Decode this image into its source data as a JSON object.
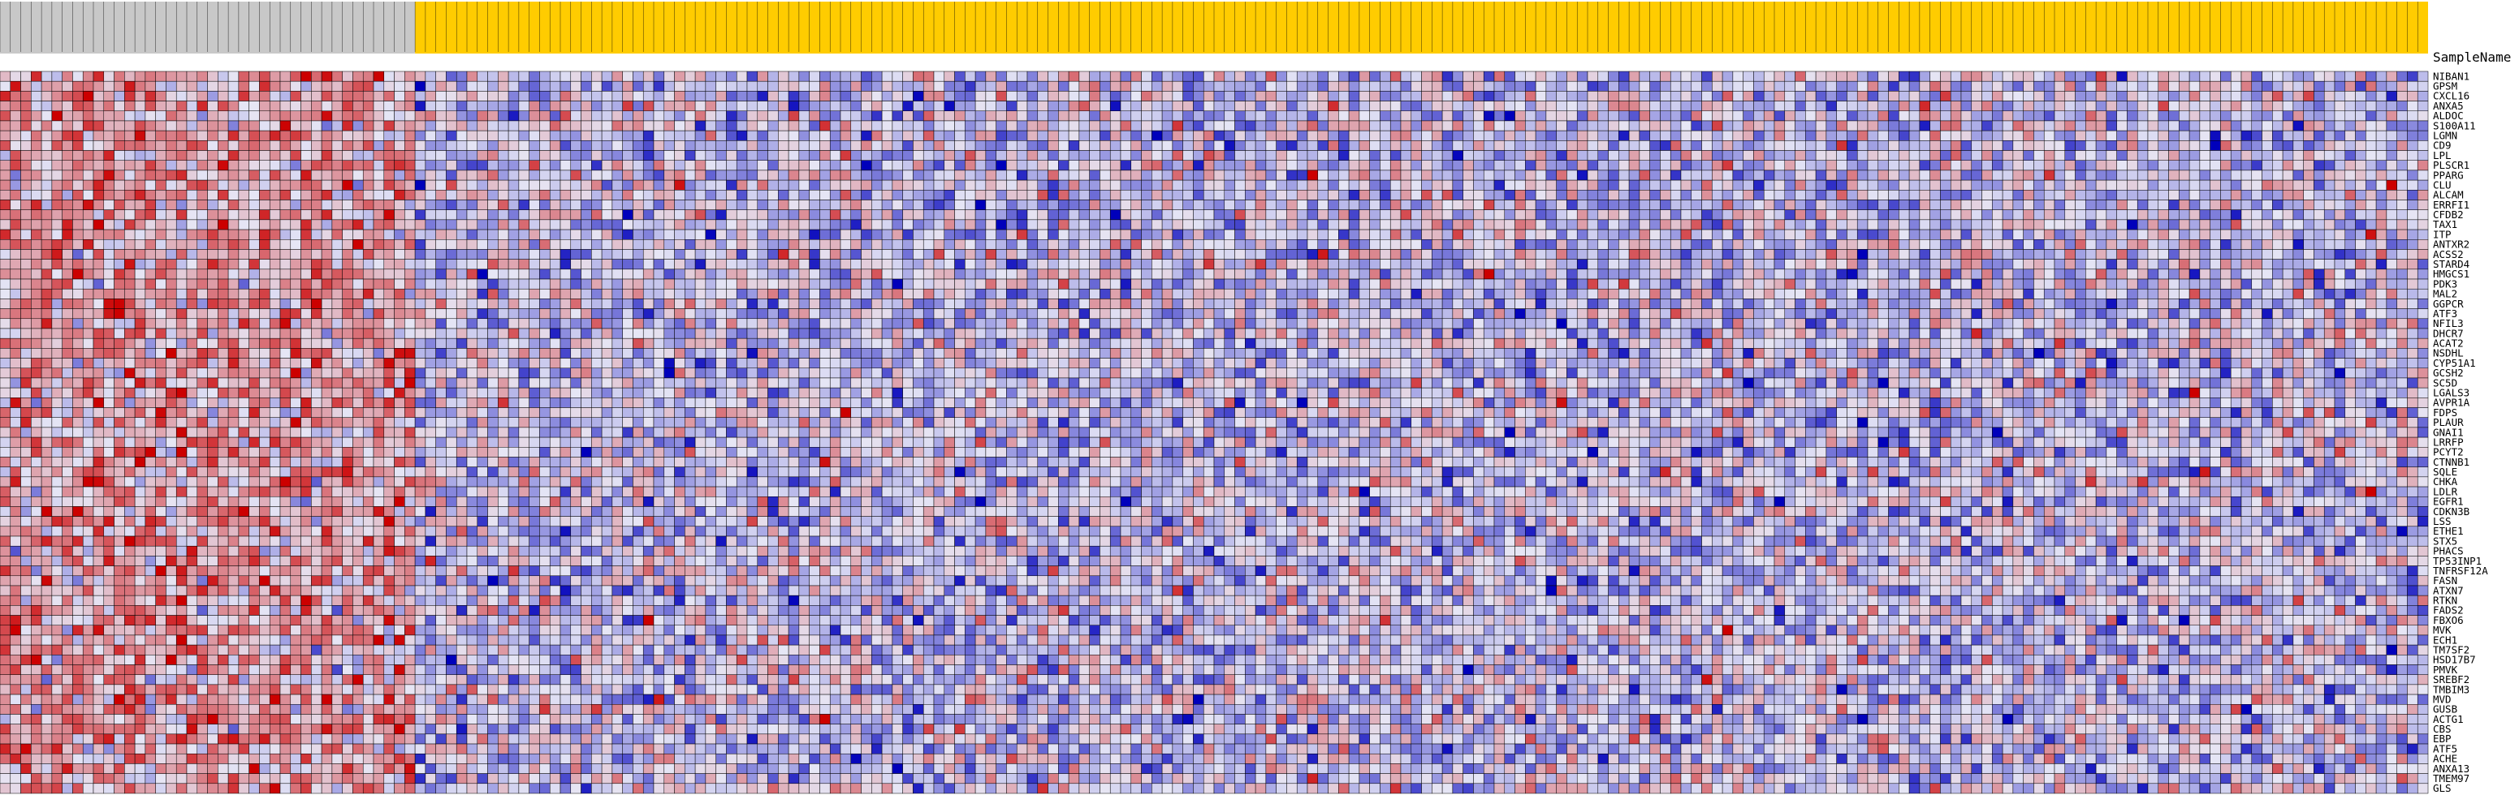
{
  "colors": {
    "class_a_header": "#c8c8c8",
    "class_b_header": "#ffcc00",
    "high": "#cc0000",
    "mid": "#e6e6f5",
    "low": "#0000bb",
    "grid": "#000000"
  },
  "header": {
    "sample_name_label": "SampleName"
  },
  "chart_data": {
    "type": "heatmap",
    "title": "",
    "xlabel": "",
    "ylabel": "",
    "value_range": [
      -3,
      3
    ],
    "column_classes": [
      {
        "count": 40,
        "color_key": "class_a_header"
      },
      {
        "count": 194,
        "color_key": "class_b_header"
      }
    ],
    "genes": [
      "NIBAN1",
      "GPSM",
      "CXCL16",
      "ANXA5",
      "ALDOC",
      "S100A11",
      "LGMN",
      "CD9",
      "LPL",
      "PLSCR1",
      "PPARG",
      "CLU",
      "ALCAM",
      "ERRFI1",
      "CFDB2",
      "TAX1",
      "ITP",
      "ANTXR2",
      "ACSS2",
      "STARD4",
      "HMGCS1",
      "PDK3",
      "MAL2",
      "GGPCR",
      "ATF3",
      "NFIL3",
      "DHCR7",
      "ACAT2",
      "NSDHL",
      "CYP51A1",
      "GCSH2",
      "SC5D",
      "LGALS3",
      "AVPR1A",
      "FDPS",
      "PLAUR",
      "GNAI1",
      "LRRFP",
      "PCYT2",
      "CTNNB1",
      "SQLE",
      "CHKA",
      "LDLR",
      "EGFR1",
      "CDKN3B",
      "LSS",
      "ETHE1",
      "STX5",
      "PHACS",
      "TP53INP1",
      "TNFRSF12A",
      "FASN",
      "ATXN7",
      "RTKN",
      "FADS2",
      "FBXO6",
      "MVK",
      "ECH1",
      "TM7SF2",
      "HSD17B7",
      "PMVK",
      "SREBF2",
      "TMBIM3",
      "MVD",
      "GUSB",
      "ACTG1",
      "CBS",
      "EBP",
      "ATF5",
      "ACHE",
      "ANXA13",
      "TMEM97",
      "GLS"
    ]
  }
}
